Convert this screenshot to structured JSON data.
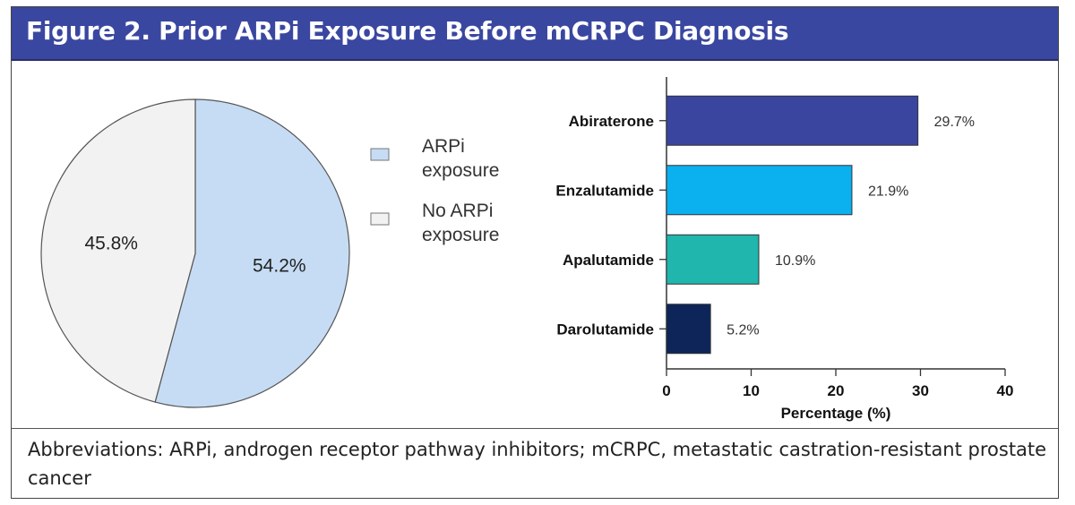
{
  "figure": {
    "title": "Figure 2. Prior ARPi Exposure Before mCRPC Diagnosis",
    "footnote": "Abbreviations: ARPi, androgen receptor pathway inhibitors; mCRPC, metastatic castration-resistant prostate cancer"
  },
  "chart_data": [
    {
      "type": "pie",
      "slices": [
        {
          "label": "ARPi exposure",
          "legend_lines": [
            "ARPi",
            "exposure"
          ],
          "value": 54.2,
          "value_label": "54.2%",
          "color": "#c6dcf4"
        },
        {
          "label": "No ARPi exposure",
          "legend_lines": [
            "No ARPi",
            "exposure"
          ],
          "value": 45.8,
          "value_label": "45.8%",
          "color": "#f2f2f2"
        }
      ],
      "legend_position": "right"
    },
    {
      "type": "bar",
      "orientation": "horizontal",
      "categories": [
        "Abiraterone",
        "Enzalutamide",
        "Apalutamide",
        "Darolutamide"
      ],
      "values": [
        29.7,
        21.9,
        10.9,
        5.2
      ],
      "value_labels": [
        "29.7%",
        "21.9%",
        "10.9%",
        "5.2%"
      ],
      "colors": [
        "#3a45a0",
        "#0bb0ef",
        "#20b5ad",
        "#0d2558"
      ],
      "xlabel": "Percentage (%)",
      "xlim": [
        0,
        40
      ],
      "xticks": [
        0,
        10,
        20,
        30,
        40
      ],
      "grid": false
    }
  ]
}
